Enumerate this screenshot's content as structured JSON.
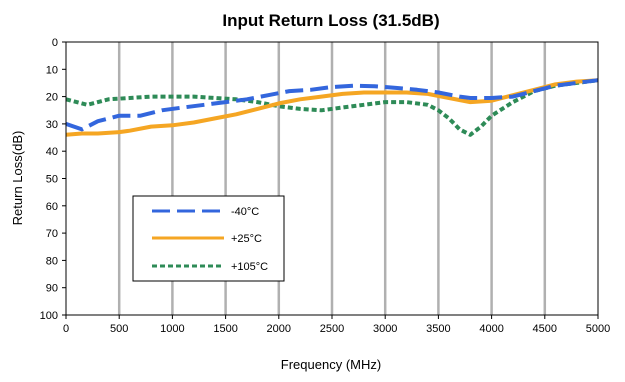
{
  "chart_data": {
    "type": "line",
    "title": "Input Return Loss (31.5dB)",
    "xlabel": "Frequency (MHz)",
    "ylabel": "Return Loss(dB)",
    "xlim": [
      0,
      5000
    ],
    "ylim": [
      0,
      100
    ],
    "y_inverted": true,
    "x_ticks": [
      0,
      500,
      1000,
      1500,
      2000,
      2500,
      3000,
      3500,
      4000,
      4500,
      5000
    ],
    "y_ticks": [
      0,
      10,
      20,
      30,
      40,
      50,
      60,
      70,
      80,
      90,
      100
    ],
    "x_tick_labels": [
      "0",
      "500",
      "1000",
      "1500",
      "2000",
      "2500",
      "3000",
      "3500",
      "4000",
      "4500",
      "5000"
    ],
    "y_tick_labels": [
      "0",
      "10",
      "20",
      "30",
      "40",
      "50",
      "60",
      "70",
      "80",
      "90",
      "100"
    ],
    "grid": "vertical",
    "legend_position": "lower-left",
    "series": [
      {
        "name": "-40°C",
        "color": "#3366dd",
        "dash": "dashed",
        "x": [
          0,
          150,
          300,
          500,
          700,
          900,
          1100,
          1300,
          1500,
          1700,
          1900,
          2100,
          2300,
          2500,
          2700,
          2900,
          3100,
          3300,
          3500,
          3700,
          3800,
          3900,
          4000,
          4200,
          4400,
          4600,
          4800,
          5000
        ],
        "y": [
          30,
          32,
          29,
          27,
          27,
          25,
          24,
          23,
          22,
          21,
          19.5,
          18,
          17.5,
          16.5,
          16,
          16.2,
          16.8,
          17.5,
          18.5,
          20,
          20.5,
          20.5,
          20.5,
          20,
          18,
          16,
          15,
          14
        ]
      },
      {
        "name": "+25°C",
        "color": "#f5a623",
        "dash": "solid",
        "x": [
          0,
          150,
          300,
          500,
          600,
          800,
          1000,
          1200,
          1400,
          1600,
          1800,
          2000,
          2200,
          2400,
          2600,
          2800,
          3000,
          3200,
          3400,
          3600,
          3800,
          4000,
          4200,
          4400,
          4600,
          4800,
          5000
        ],
        "y": [
          34,
          33.5,
          33.5,
          33,
          32.5,
          31,
          30.5,
          29.5,
          28,
          26.5,
          24.5,
          22.5,
          21,
          20,
          19,
          18.5,
          18.5,
          18.5,
          19,
          20.5,
          22,
          21.5,
          19.5,
          17.5,
          15.5,
          14.5,
          14
        ]
      },
      {
        "name": "+105°C",
        "color": "#2e8b57",
        "dash": "dotted",
        "x": [
          0,
          200,
          400,
          600,
          800,
          1000,
          1200,
          1400,
          1600,
          1800,
          2000,
          2200,
          2400,
          2600,
          2800,
          3000,
          3200,
          3400,
          3500,
          3600,
          3700,
          3800,
          3900,
          4000,
          4200,
          4400,
          4600,
          4800,
          5000
        ],
        "y": [
          21,
          23,
          21,
          20.5,
          20,
          20,
          20,
          20.5,
          21,
          22,
          23.5,
          24.5,
          25,
          24,
          23,
          22,
          22,
          23,
          25,
          28,
          32,
          34,
          31,
          27,
          22,
          18,
          16,
          15,
          14
        ]
      }
    ]
  }
}
